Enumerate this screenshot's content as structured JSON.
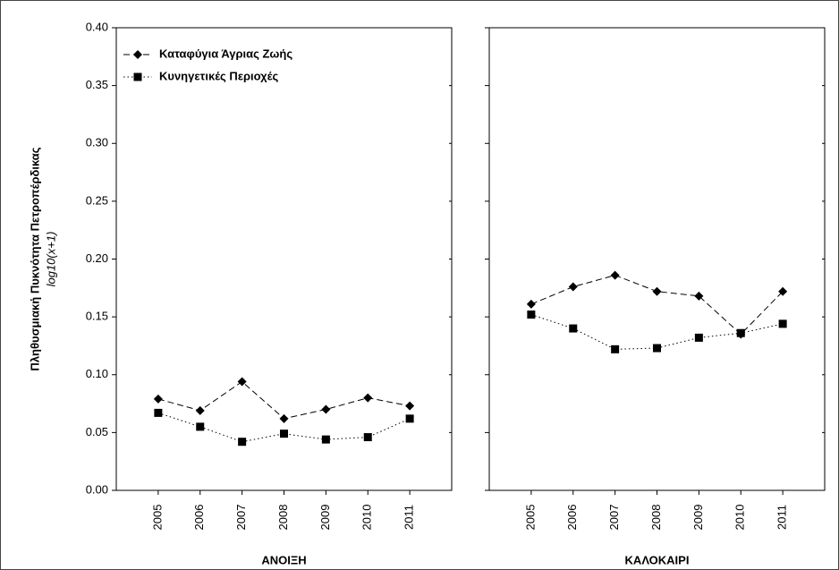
{
  "chart_data": [
    {
      "type": "line",
      "title": "ΑΝΟΙΞΗ",
      "y_label": "Πληθυσμιακή Πυκνότητα Πετροπέρδικας",
      "y_sublabel": "log10(x+1)",
      "categories": [
        "2005",
        "2006",
        "2007",
        "2008",
        "2009",
        "2010",
        "2011"
      ],
      "series": [
        {
          "name": "Καταφύγια Άγριας Ζωής",
          "color": "#000000",
          "marker": "diamond",
          "dash": "dashed",
          "values": [
            0.079,
            0.069,
            0.094,
            0.062,
            0.07,
            0.08,
            0.073
          ]
        },
        {
          "name": "Κυνηγετικές Περιοχές",
          "color": "#000000",
          "marker": "square",
          "dash": "dotted",
          "values": [
            0.067,
            0.055,
            0.042,
            0.049,
            0.044,
            0.046,
            0.062
          ]
        }
      ],
      "ylim": [
        0,
        0.4
      ],
      "yticks": [
        {
          "value": 0,
          "label": "0.00"
        },
        0.05,
        {
          "value": 0.1,
          "label": "0.10"
        },
        0.15,
        {
          "value": 0.2,
          "label": "0.20"
        },
        0.25,
        {
          "value": 0.3,
          "label": "0.30"
        },
        0.35,
        {
          "value": 0.4,
          "label": "0.40"
        }
      ]
    },
    {
      "type": "line",
      "title": "ΚΑΛΟΚΑΙΡΙ",
      "categories": [
        "2005",
        "2006",
        "2007",
        "2008",
        "2009",
        "2010",
        "2011"
      ],
      "series": [
        {
          "color": "#000000",
          "marker": "diamond",
          "dash": "dashed",
          "values": [
            0.161,
            0.176,
            0.186,
            0.172,
            0.168,
            0.135,
            0.172
          ]
        },
        {
          "color": "#000000",
          "marker": "square",
          "dash": "dotted",
          "values": [
            0.152,
            0.14,
            0.122,
            0.123,
            0.132,
            0.136,
            0.144
          ]
        }
      ],
      "ylim": [
        0,
        0.4
      ],
      "yticks": [
        0,
        0.05,
        0.1,
        0.15,
        0.2,
        0.25,
        0.3,
        0.35,
        0.4
      ]
    }
  ]
}
